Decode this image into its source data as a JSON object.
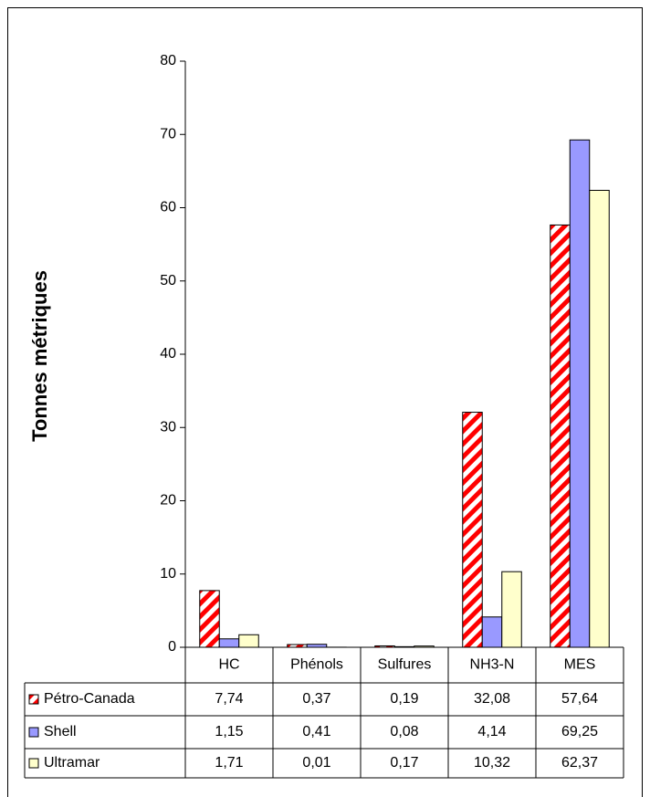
{
  "chart_data": {
    "type": "bar",
    "y_label": "Tonnes métriques",
    "categories": [
      "HC",
      "Phénols",
      "Sulfures",
      "NH3-N",
      "MES"
    ],
    "series": [
      {
        "name": "Pétro-Canada",
        "color": "#ff0000",
        "hatch": true,
        "values": [
          7.74,
          0.37,
          0.19,
          32.08,
          57.64
        ],
        "value_labels": [
          "7,74",
          "0,37",
          "0,19",
          "32,08",
          "57,64"
        ]
      },
      {
        "name": "Shell",
        "color": "#9999ff",
        "values": [
          1.15,
          0.41,
          0.08,
          4.14,
          69.25
        ],
        "value_labels": [
          "1,15",
          "0,41",
          "0,08",
          "4,14",
          "69,25"
        ]
      },
      {
        "name": "Ultramar",
        "color": "#ffffcc",
        "values": [
          1.71,
          0.01,
          0.17,
          10.32,
          62.37
        ],
        "value_labels": [
          "1,71",
          "0,01",
          "0,17",
          "10,32",
          "62,37"
        ]
      }
    ],
    "ylim": [
      0,
      80
    ],
    "yticks": [
      0,
      10,
      20,
      30,
      40,
      50,
      60,
      70,
      80
    ],
    "data_table": true
  }
}
